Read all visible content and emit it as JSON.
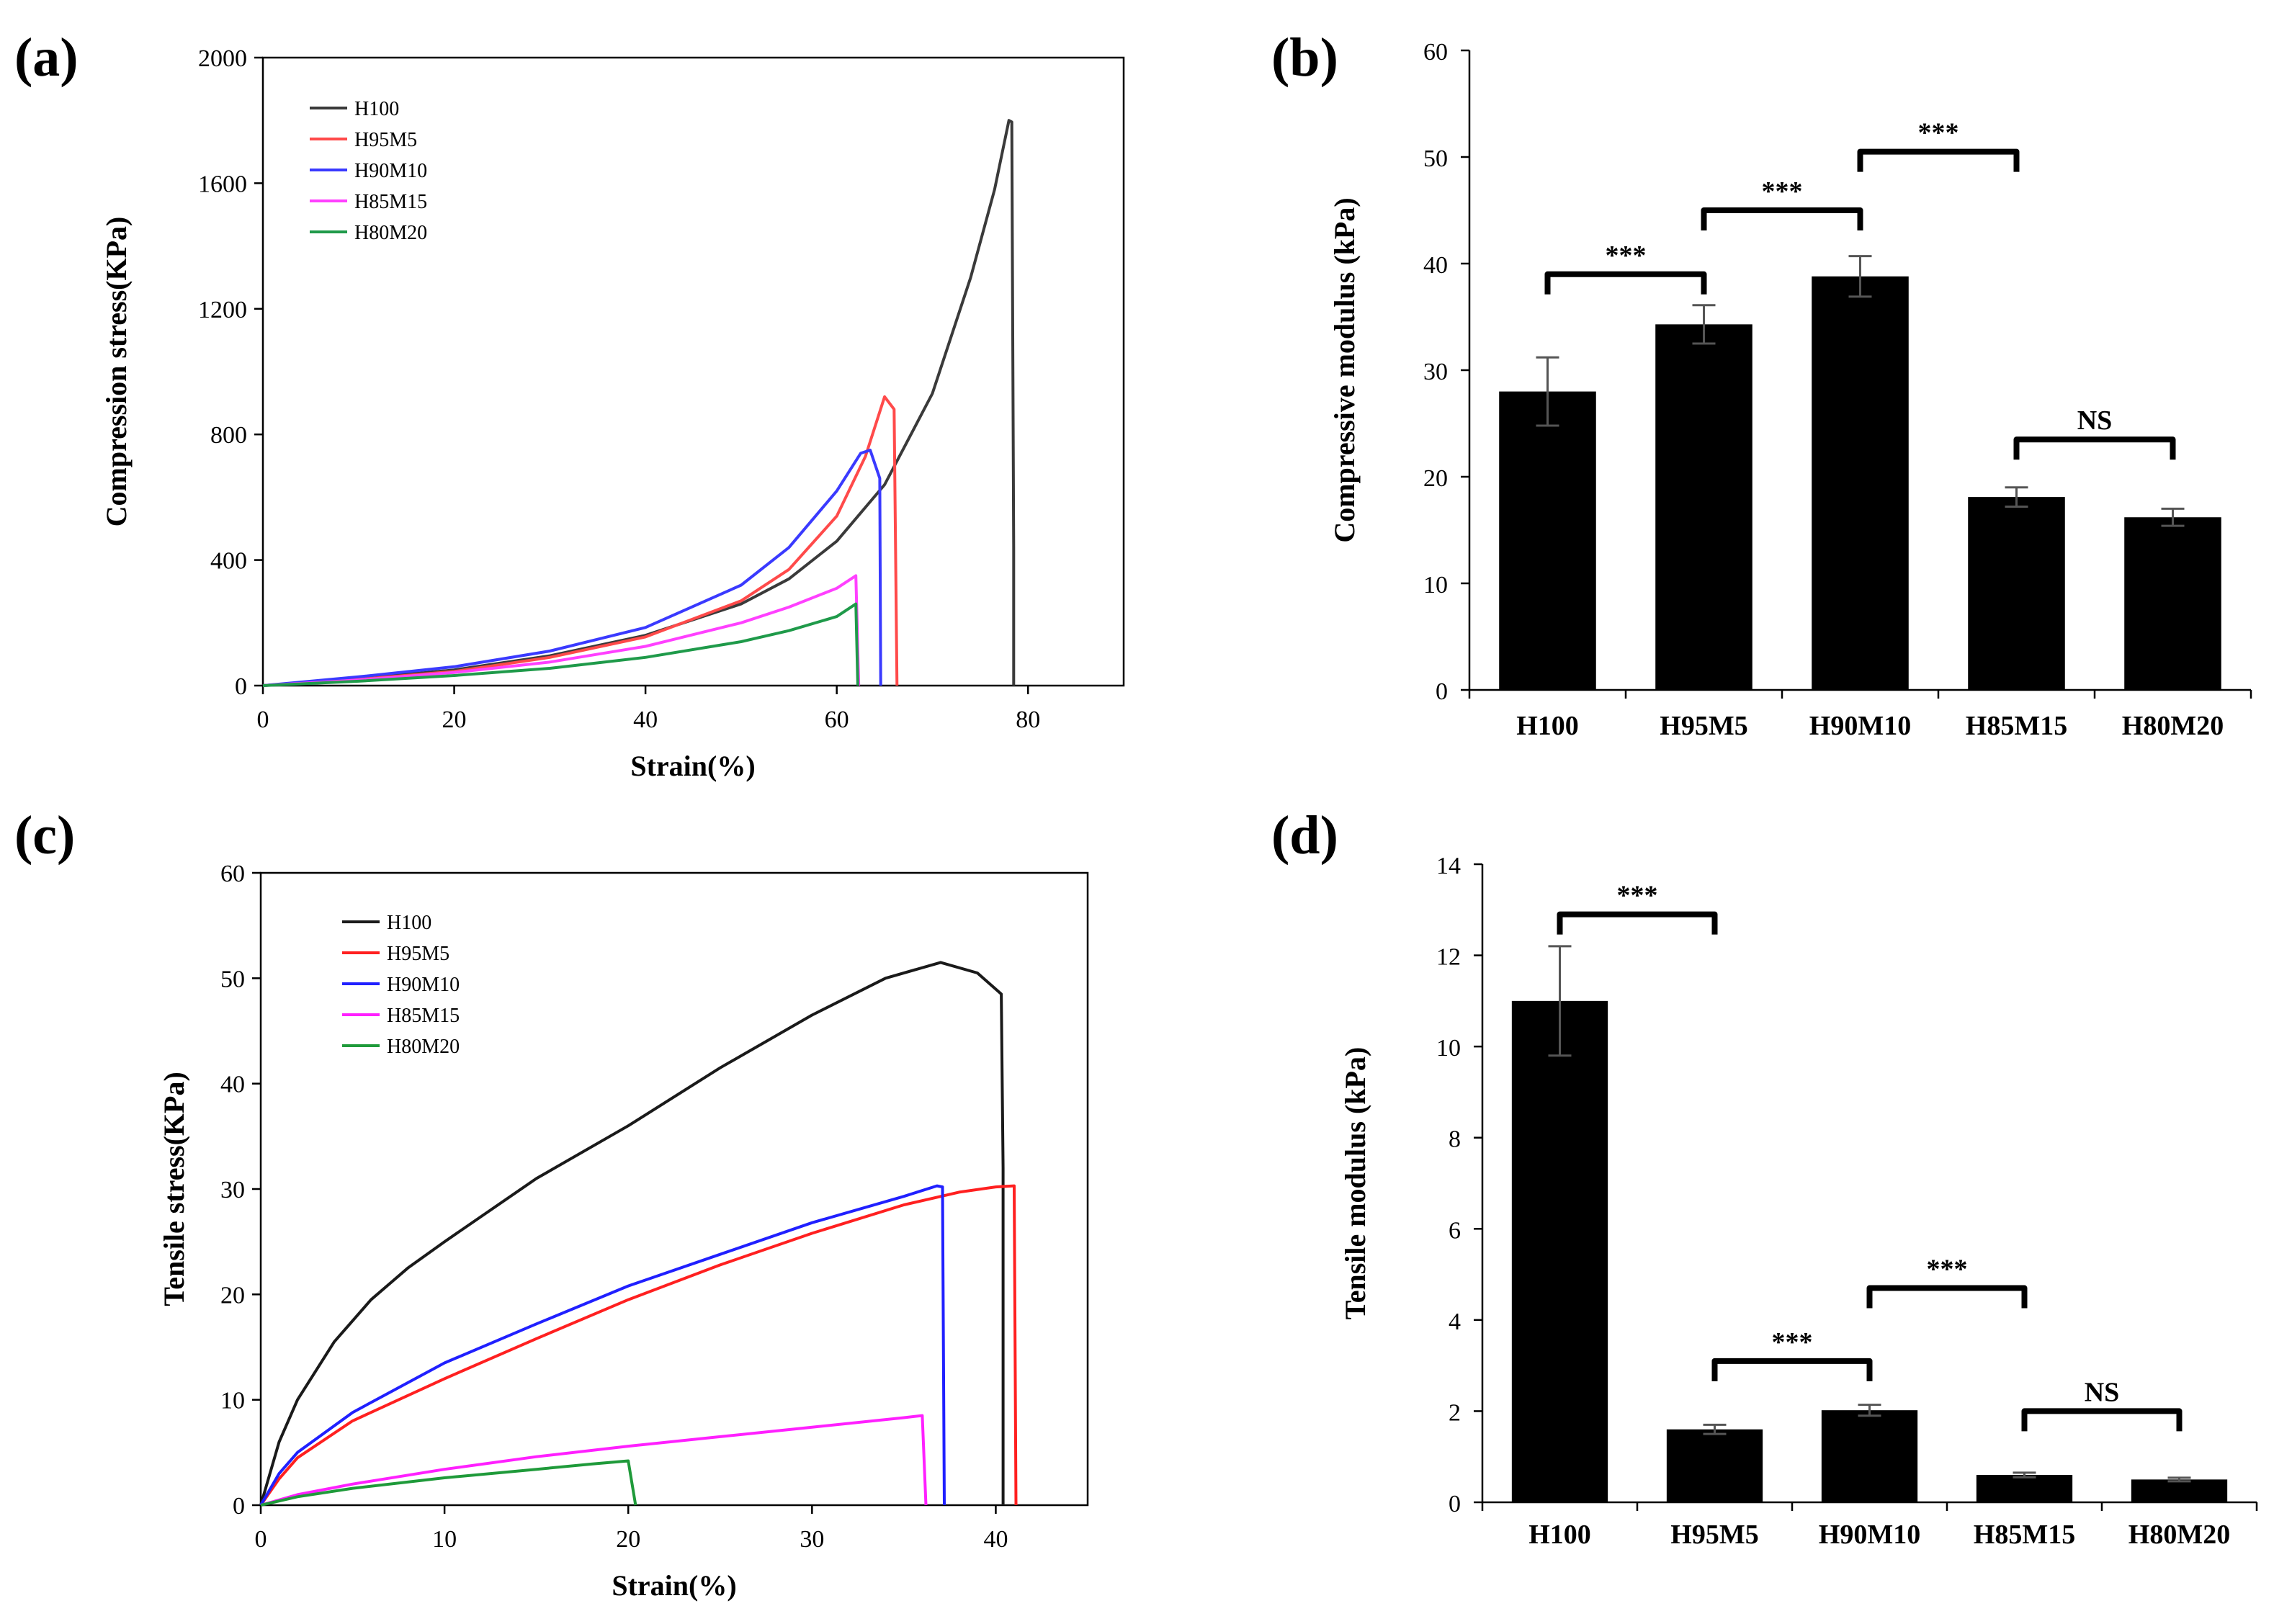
{
  "chart_data": [
    {
      "panel": "(a)",
      "type": "line",
      "xlabel": "Strain(%)",
      "ylabel": "Compression stress(KPa)",
      "xlim": [
        0,
        90
      ],
      "ylim": [
        0,
        2000
      ],
      "xticks": [
        0,
        20,
        40,
        60,
        80
      ],
      "yticks": [
        0,
        400,
        800,
        1200,
        1600,
        2000
      ],
      "legend": "top-left",
      "series": [
        {
          "name": "H100",
          "color": "#3a3a3a",
          "points": [
            [
              0,
              0
            ],
            [
              10,
              22
            ],
            [
              20,
              50
            ],
            [
              30,
              95
            ],
            [
              40,
              160
            ],
            [
              50,
              260
            ],
            [
              55,
              340
            ],
            [
              60,
              460
            ],
            [
              65,
              640
            ],
            [
              70,
              930
            ],
            [
              74,
              1300
            ],
            [
              76.5,
              1580
            ],
            [
              78,
              1800
            ],
            [
              78.3,
              1795
            ],
            [
              78.5,
              440
            ],
            [
              78.5,
              0
            ]
          ]
        },
        {
          "name": "H95M5",
          "color": "#ff4a4a",
          "points": [
            [
              0,
              0
            ],
            [
              10,
              20
            ],
            [
              20,
              45
            ],
            [
              30,
              90
            ],
            [
              40,
              155
            ],
            [
              50,
              270
            ],
            [
              55,
              370
            ],
            [
              60,
              540
            ],
            [
              63,
              730
            ],
            [
              65,
              920
            ],
            [
              66,
              880
            ],
            [
              66.3,
              0
            ]
          ]
        },
        {
          "name": "H90M10",
          "color": "#3a3aff",
          "points": [
            [
              0,
              0
            ],
            [
              10,
              28
            ],
            [
              20,
              60
            ],
            [
              30,
              110
            ],
            [
              40,
              185
            ],
            [
              50,
              320
            ],
            [
              55,
              440
            ],
            [
              60,
              620
            ],
            [
              62.5,
              740
            ],
            [
              63.5,
              750
            ],
            [
              64.5,
              660
            ],
            [
              64.6,
              0
            ]
          ]
        },
        {
          "name": "H85M15",
          "color": "#ff40ff",
          "points": [
            [
              0,
              0
            ],
            [
              10,
              18
            ],
            [
              20,
              42
            ],
            [
              30,
              75
            ],
            [
              40,
              125
            ],
            [
              50,
              200
            ],
            [
              55,
              250
            ],
            [
              60,
              310
            ],
            [
              62,
              350
            ],
            [
              62.3,
              0
            ]
          ]
        },
        {
          "name": "H80M20",
          "color": "#1f9a4a",
          "points": [
            [
              0,
              0
            ],
            [
              10,
              14
            ],
            [
              20,
              32
            ],
            [
              30,
              55
            ],
            [
              40,
              90
            ],
            [
              50,
              140
            ],
            [
              55,
              175
            ],
            [
              60,
              220
            ],
            [
              62,
              260
            ],
            [
              62.2,
              0
            ]
          ]
        }
      ]
    },
    {
      "panel": "(b)",
      "type": "bar",
      "ylabel": "Compressive modulus (kPa)",
      "ylim": [
        0,
        60
      ],
      "yticks": [
        0,
        10,
        20,
        30,
        40,
        50,
        60
      ],
      "categories": [
        "H100",
        "H95M5",
        "H90M10",
        "H85M15",
        "H80M20"
      ],
      "values": [
        28,
        34.3,
        38.8,
        18.1,
        16.2
      ],
      "errors": [
        3.2,
        1.8,
        1.9,
        0.9,
        0.8
      ],
      "significance": [
        {
          "from": 0,
          "to": 1,
          "label": "***",
          "y": 39
        },
        {
          "from": 1,
          "to": 2,
          "label": "***",
          "y": 45
        },
        {
          "from": 2,
          "to": 3,
          "label": "***",
          "y": 50.5
        },
        {
          "from": 3,
          "to": 4,
          "label": "NS",
          "y": 23.5
        }
      ]
    },
    {
      "panel": "(c)",
      "type": "line",
      "xlabel": "Strain(%)",
      "ylabel": "Tensile stress(KPa)",
      "xlim": [
        0,
        45
      ],
      "ylim": [
        0,
        60
      ],
      "xticks": [
        0,
        10,
        20,
        30,
        40
      ],
      "yticks": [
        0,
        10,
        20,
        30,
        40,
        50,
        60
      ],
      "legend": "top-left",
      "series": [
        {
          "name": "H100",
          "color": "#1a1a1a",
          "points": [
            [
              0,
              0
            ],
            [
              1,
              6
            ],
            [
              2,
              10
            ],
            [
              4,
              15.5
            ],
            [
              6,
              19.5
            ],
            [
              8,
              22.5
            ],
            [
              10,
              25
            ],
            [
              15,
              31
            ],
            [
              20,
              36
            ],
            [
              25,
              41.5
            ],
            [
              30,
              46.5
            ],
            [
              34,
              50
            ],
            [
              37,
              51.5
            ],
            [
              39,
              50.5
            ],
            [
              40.3,
              48.5
            ],
            [
              40.4,
              32
            ],
            [
              40.4,
              0
            ]
          ]
        },
        {
          "name": "H95M5",
          "color": "#ff2020",
          "points": [
            [
              0,
              0
            ],
            [
              1,
              2.5
            ],
            [
              2,
              4.5
            ],
            [
              5,
              8
            ],
            [
              10,
              12
            ],
            [
              15,
              15.8
            ],
            [
              20,
              19.5
            ],
            [
              25,
              22.8
            ],
            [
              30,
              25.8
            ],
            [
              35,
              28.5
            ],
            [
              38,
              29.7
            ],
            [
              40,
              30.2
            ],
            [
              41,
              30.3
            ],
            [
              41.1,
              0
            ]
          ]
        },
        {
          "name": "H90M10",
          "color": "#2020ff",
          "points": [
            [
              0,
              0
            ],
            [
              1,
              3
            ],
            [
              2,
              5
            ],
            [
              5,
              8.8
            ],
            [
              10,
              13.5
            ],
            [
              15,
              17.2
            ],
            [
              20,
              20.8
            ],
            [
              25,
              23.8
            ],
            [
              30,
              26.8
            ],
            [
              35,
              29.3
            ],
            [
              36.8,
              30.3
            ],
            [
              37.1,
              30.2
            ],
            [
              37.2,
              0
            ]
          ]
        },
        {
          "name": "H85M15",
          "color": "#ff20ff",
          "points": [
            [
              0,
              0
            ],
            [
              2,
              1
            ],
            [
              5,
              2
            ],
            [
              10,
              3.4
            ],
            [
              15,
              4.6
            ],
            [
              20,
              5.6
            ],
            [
              25,
              6.5
            ],
            [
              30,
              7.4
            ],
            [
              35,
              8.3
            ],
            [
              36,
              8.5
            ],
            [
              36.2,
              0
            ]
          ]
        },
        {
          "name": "H80M20",
          "color": "#1f9a3a",
          "points": [
            [
              0,
              0
            ],
            [
              2,
              0.8
            ],
            [
              5,
              1.6
            ],
            [
              10,
              2.6
            ],
            [
              15,
              3.4
            ],
            [
              18,
              3.9
            ],
            [
              20,
              4.2
            ],
            [
              20.4,
              0
            ]
          ]
        }
      ]
    },
    {
      "panel": "(d)",
      "type": "bar",
      "ylabel": "Tensile modulus (kPa)",
      "ylim": [
        0,
        14
      ],
      "yticks": [
        0,
        2,
        4,
        6,
        8,
        10,
        12,
        14
      ],
      "categories": [
        "H100",
        "H95M5",
        "H90M10",
        "H85M15",
        "H80M20"
      ],
      "values": [
        11,
        1.6,
        2.02,
        0.6,
        0.5
      ],
      "errors": [
        1.2,
        0.1,
        0.12,
        0.05,
        0.04
      ],
      "significance": [
        {
          "from": 0,
          "to": 1,
          "label": "***",
          "y": 12.9
        },
        {
          "from": 1,
          "to": 2,
          "label": "***",
          "y": 3.1
        },
        {
          "from": 2,
          "to": 3,
          "label": "***",
          "y": 4.7
        },
        {
          "from": 3,
          "to": 4,
          "label": "NS",
          "y": 2
        }
      ]
    }
  ]
}
